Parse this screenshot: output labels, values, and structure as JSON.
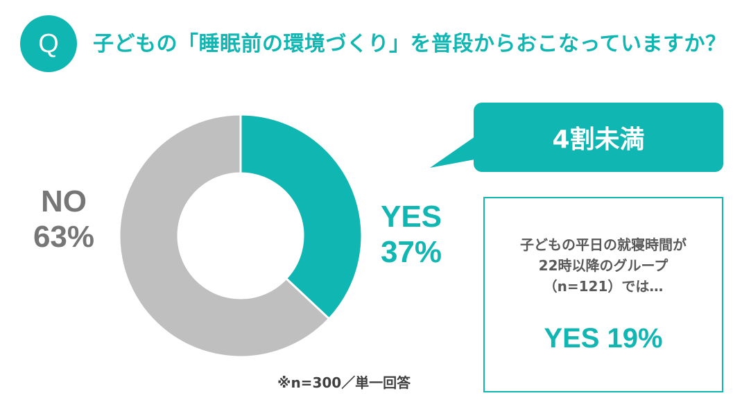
{
  "header": {
    "badge": "Q",
    "question": "子どもの「睡眠前の環境づくり」を普段からおこなっていますか？"
  },
  "chart_data": {
    "type": "pie",
    "categories": [
      "YES",
      "NO"
    ],
    "values": [
      37,
      63
    ],
    "labels": [
      "37%",
      "63%"
    ],
    "colors": [
      "#0fb6b2",
      "#bfbfbf"
    ],
    "style": "donut",
    "title": "",
    "legend": "none"
  },
  "callout": {
    "text": "4割未満"
  },
  "sub_result": {
    "lines": [
      "子どもの平日の就寝時間が",
      "22時以降のグループ",
      "（n=121）では…"
    ],
    "result": "YES 19%"
  },
  "footnote": "※n=300／単一回答"
}
